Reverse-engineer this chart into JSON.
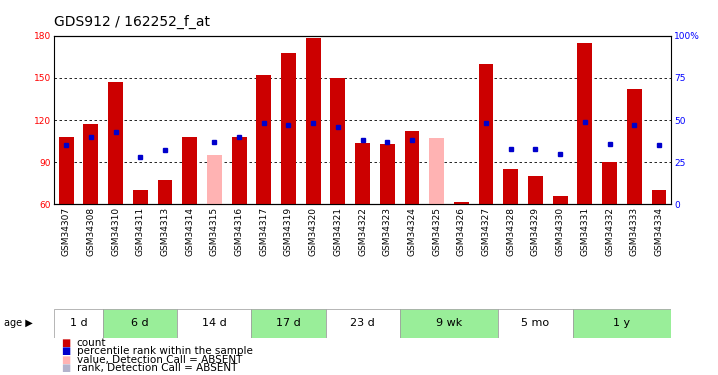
{
  "title": "GDS912 / 162252_f_at",
  "samples": [
    "GSM34307",
    "GSM34308",
    "GSM34310",
    "GSM34311",
    "GSM34313",
    "GSM34314",
    "GSM34315",
    "GSM34316",
    "GSM34317",
    "GSM34319",
    "GSM34320",
    "GSM34321",
    "GSM34322",
    "GSM34323",
    "GSM34324",
    "GSM34325",
    "GSM34326",
    "GSM34327",
    "GSM34328",
    "GSM34329",
    "GSM34330",
    "GSM34331",
    "GSM34332",
    "GSM34333",
    "GSM34334"
  ],
  "bar_values": [
    108,
    117,
    147,
    70,
    77,
    108,
    95,
    108,
    152,
    168,
    178,
    150,
    104,
    103,
    112,
    107,
    62,
    160,
    85,
    80,
    66,
    175,
    90,
    142,
    70
  ],
  "bar_absent": [
    false,
    false,
    false,
    false,
    false,
    false,
    true,
    false,
    false,
    false,
    false,
    false,
    false,
    false,
    false,
    true,
    false,
    false,
    false,
    false,
    false,
    false,
    false,
    false,
    false
  ],
  "rank_values": [
    35,
    40,
    43,
    28,
    32,
    null,
    37,
    40,
    48,
    47,
    48,
    46,
    38,
    37,
    38,
    null,
    null,
    48,
    33,
    33,
    30,
    49,
    36,
    47,
    35
  ],
  "rank_absent": [
    false,
    false,
    false,
    false,
    false,
    false,
    false,
    false,
    false,
    false,
    false,
    false,
    false,
    false,
    false,
    true,
    true,
    false,
    false,
    false,
    false,
    false,
    false,
    false,
    false
  ],
  "age_groups": [
    {
      "label": "1 d",
      "start": 0,
      "end": 2
    },
    {
      "label": "6 d",
      "start": 2,
      "end": 5
    },
    {
      "label": "14 d",
      "start": 5,
      "end": 8
    },
    {
      "label": "17 d",
      "start": 8,
      "end": 11
    },
    {
      "label": "23 d",
      "start": 11,
      "end": 14
    },
    {
      "label": "9 wk",
      "start": 14,
      "end": 18
    },
    {
      "label": "5 mo",
      "start": 18,
      "end": 21
    },
    {
      "label": "1 y",
      "start": 21,
      "end": 25
    }
  ],
  "ylim_left": [
    60,
    180
  ],
  "ylim_right": [
    0,
    100
  ],
  "yticks_left": [
    60,
    90,
    120,
    150,
    180
  ],
  "yticks_right": [
    0,
    25,
    50,
    75,
    100
  ],
  "bar_color_normal": "#cc0000",
  "bar_color_absent": "#ffb3b3",
  "rank_color_normal": "#0000cc",
  "rank_color_absent": "#b3b3cc",
  "age_color_odd": "#ffffff",
  "age_color_even": "#99ee99",
  "plot_bg_color": "#ffffff",
  "title_fontsize": 10,
  "tick_fontsize": 6.5,
  "age_fontsize": 8,
  "legend_fontsize": 7.5
}
